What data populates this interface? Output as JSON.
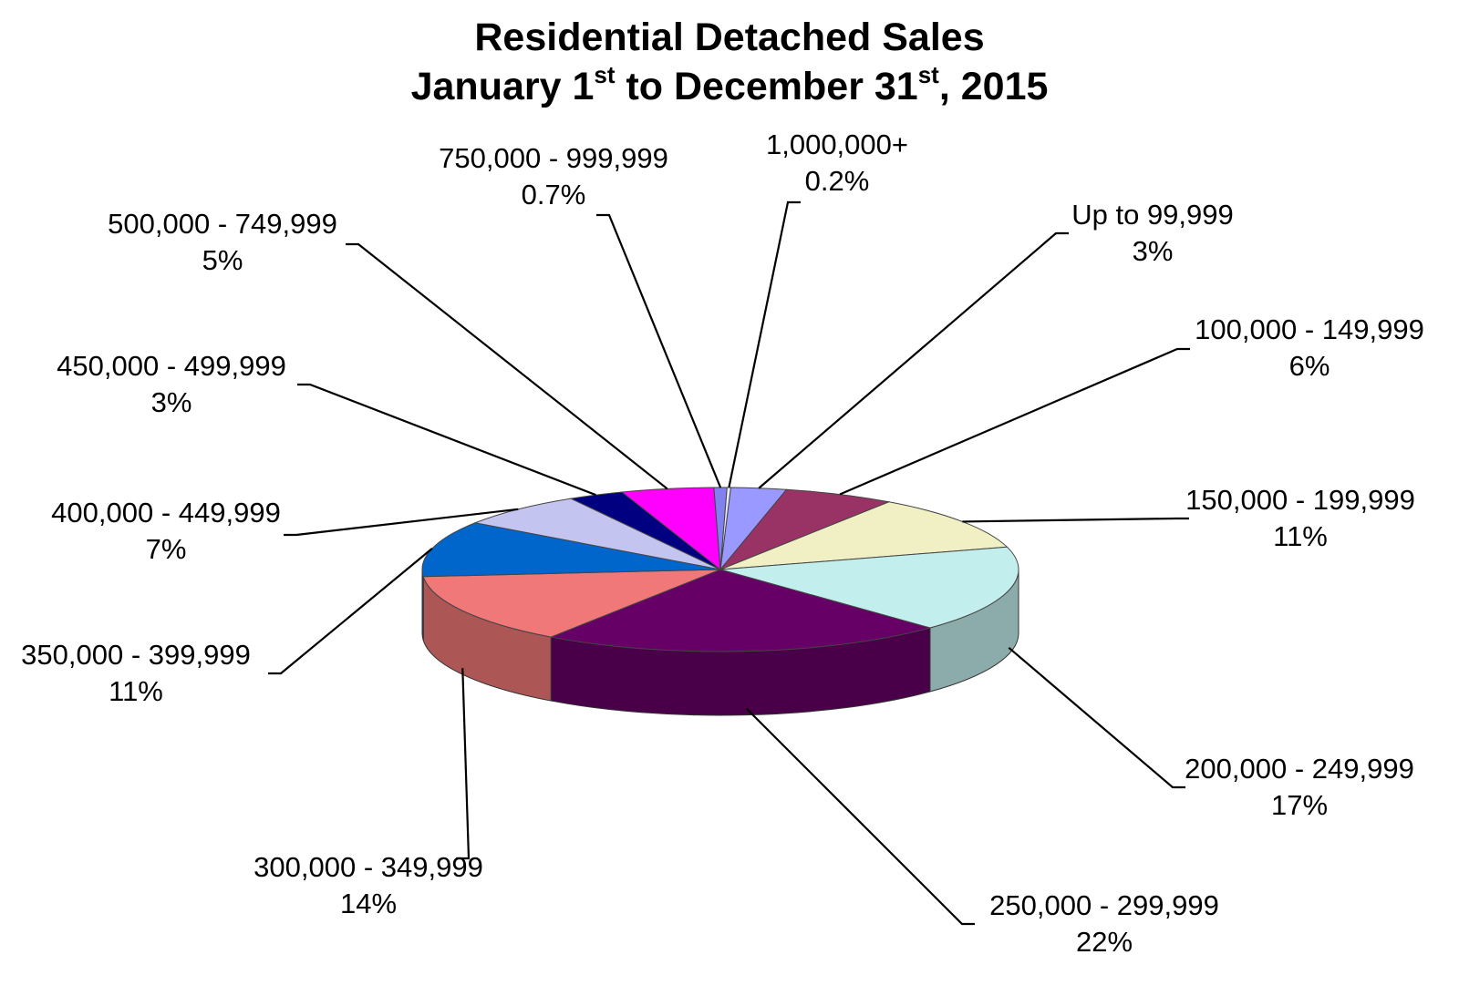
{
  "chart_data": {
    "type": "pie",
    "title": {
      "line1": "Residential Detached Sales",
      "line2_parts": [
        "January 1",
        "st",
        " to December 31",
        "st",
        ", 2015"
      ]
    },
    "slices": [
      {
        "label": "Up to 99,999",
        "value": 3,
        "value_label": "3%",
        "color": "#9999ff"
      },
      {
        "label": "100,000 - 149,999",
        "value": 6,
        "value_label": "6%",
        "color": "#993366"
      },
      {
        "label": "150,000 - 199,999",
        "value": 11,
        "value_label": "11%",
        "color": "#f0f0c4"
      },
      {
        "label": "200,000 - 249,999",
        "value": 17,
        "value_label": "17%",
        "color": "#c2eeee"
      },
      {
        "label": "250,000 - 299,999",
        "value": 22,
        "value_label": "22%",
        "color": "#660066"
      },
      {
        "label": "300,000 - 349,999",
        "value": 14,
        "value_label": "14%",
        "color": "#f07878"
      },
      {
        "label": "350,000 - 399,999",
        "value": 11,
        "value_label": "11%",
        "color": "#0066cc"
      },
      {
        "label": "400,000 - 449,999",
        "value": 7,
        "value_label": "7%",
        "color": "#c4c4f0"
      },
      {
        "label": "450,000 - 499,999",
        "value": 3,
        "value_label": "3%",
        "color": "#000080"
      },
      {
        "label": "500,000 - 749,999",
        "value": 5,
        "value_label": "5%",
        "color": "#ff00ff"
      },
      {
        "label": "750,000 - 999,999",
        "value": 0.7,
        "value_label": "0.7%",
        "color": "#8080ee"
      },
      {
        "label": "1,000,000+",
        "value": 0.2,
        "value_label": "0.2%",
        "color": "#e8e8ff"
      }
    ],
    "legend": "none (leader-line labels)",
    "style": "3d-tilted"
  }
}
